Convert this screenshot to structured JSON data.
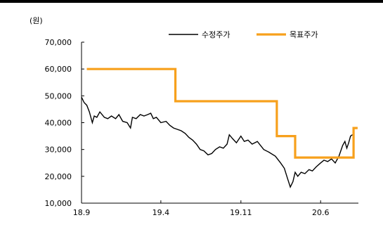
{
  "chart_data": {
    "type": "line",
    "unit_label": "(원)",
    "xlabel": "",
    "ylabel": "",
    "ylim": [
      10000,
      70000
    ],
    "y_ticks": [
      10000,
      20000,
      30000,
      40000,
      50000,
      60000,
      70000
    ],
    "y_tick_labels": [
      "10,000",
      "20,000",
      "30,000",
      "40,000",
      "50,000",
      "60,000",
      "70,000"
    ],
    "x_domain": [
      "2018-09-01",
      "2020-09-10"
    ],
    "x_ticks": [
      "2018-09-01",
      "2019-04-01",
      "2019-11-01",
      "2020-06-01"
    ],
    "x_tick_labels": [
      "18.9",
      "19.4",
      "19.11",
      "20.6"
    ],
    "legend_position": "top-right",
    "grid": false,
    "series": [
      {
        "name": "수정주가",
        "color": "#000000",
        "dates": [
          "2018-09-01",
          "2018-09-08",
          "2018-09-15",
          "2018-09-22",
          "2018-09-30",
          "2018-10-05",
          "2018-10-12",
          "2018-10-20",
          "2018-11-01",
          "2018-11-10",
          "2018-11-20",
          "2018-12-01",
          "2018-12-10",
          "2018-12-20",
          "2019-01-01",
          "2019-01-10",
          "2019-01-15",
          "2019-01-25",
          "2019-02-05",
          "2019-02-15",
          "2019-02-25",
          "2019-03-05",
          "2019-03-12",
          "2019-03-20",
          "2019-04-01",
          "2019-04-15",
          "2019-04-25",
          "2019-05-05",
          "2019-05-15",
          "2019-05-25",
          "2019-06-05",
          "2019-06-15",
          "2019-06-25",
          "2019-07-05",
          "2019-07-15",
          "2019-07-25",
          "2019-08-05",
          "2019-08-15",
          "2019-08-25",
          "2019-09-05",
          "2019-09-15",
          "2019-09-25",
          "2019-10-01",
          "2019-10-10",
          "2019-10-20",
          "2019-11-01",
          "2019-11-10",
          "2019-11-20",
          "2019-12-01",
          "2019-12-15",
          "2020-01-01",
          "2020-01-15",
          "2020-02-01",
          "2020-02-15",
          "2020-02-25",
          "2020-03-05",
          "2020-03-12",
          "2020-03-19",
          "2020-03-25",
          "2020-04-01",
          "2020-04-10",
          "2020-04-20",
          "2020-05-01",
          "2020-05-10",
          "2020-05-20",
          "2020-06-01",
          "2020-06-10",
          "2020-06-20",
          "2020-06-30",
          "2020-07-10",
          "2020-07-20",
          "2020-07-30",
          "2020-08-05",
          "2020-08-10",
          "2020-08-15",
          "2020-08-20",
          "2020-08-25"
        ],
        "values": [
          49500,
          47500,
          46500,
          44000,
          40000,
          42500,
          42000,
          44000,
          42000,
          41500,
          42500,
          41500,
          43000,
          40500,
          40000,
          38000,
          42000,
          41500,
          43000,
          42500,
          43000,
          43500,
          41500,
          42000,
          40000,
          40500,
          39000,
          38000,
          37500,
          37000,
          36000,
          34500,
          33500,
          32000,
          30000,
          29500,
          28000,
          28500,
          30000,
          31000,
          30500,
          32000,
          35500,
          34000,
          32500,
          35000,
          33000,
          33500,
          32000,
          33000,
          30000,
          29000,
          27500,
          25000,
          23000,
          19000,
          16000,
          18000,
          21500,
          20000,
          21500,
          21000,
          22500,
          22000,
          23500,
          25000,
          26000,
          25500,
          26500,
          25000,
          27500,
          31500,
          33000,
          30500,
          32500,
          35000,
          35500
        ]
      },
      {
        "name": "목표주가",
        "color": "#f7a01c",
        "dates": [
          "2018-09-15",
          "2019-05-10",
          "2019-05-10",
          "2020-02-05",
          "2020-02-05",
          "2020-03-25",
          "2020-03-25",
          "2020-08-28",
          "2020-08-28",
          "2020-09-08"
        ],
        "values": [
          60000,
          60000,
          48000,
          48000,
          35000,
          35000,
          27000,
          27000,
          38000,
          38000
        ]
      }
    ]
  }
}
